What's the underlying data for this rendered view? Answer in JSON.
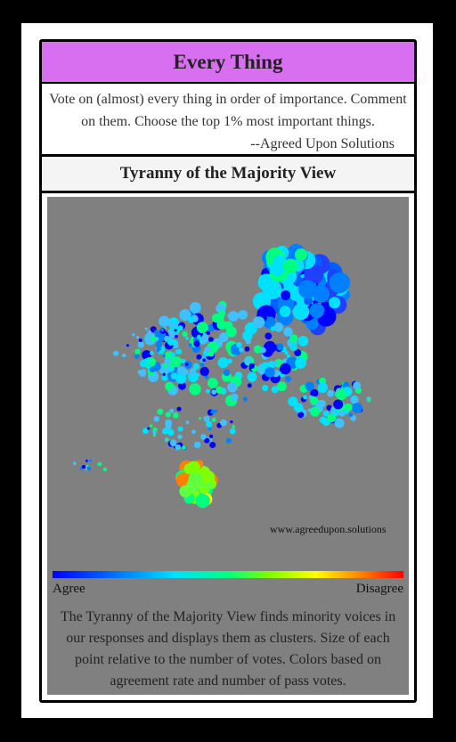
{
  "app": {
    "title": "Every Thing",
    "description": "Vote on (almost) every thing in order of importance. Comment on them. Choose the top 1% most important things.",
    "signature": "--Agreed Upon Solutions"
  },
  "view": {
    "heading": "Tyranny of the Majority View",
    "credit": "www.agreedupon.solutions",
    "legend_low": "Agree",
    "legend_high": "Disagree",
    "explanation": "The Tyranny of the Majority View finds minority voices in our responses and displays them as clusters. Size of each point relative to the number of votes. Colors based on agreement rate and number of pass votes."
  },
  "colors": {
    "title_bg": "#d86ff0",
    "panel_bg": "#808080",
    "scale": [
      "#0000ff",
      "#0080ff",
      "#00e0ff",
      "#00ff80",
      "#80ff00",
      "#ffff00",
      "#ff8000",
      "#ff0000"
    ]
  }
}
